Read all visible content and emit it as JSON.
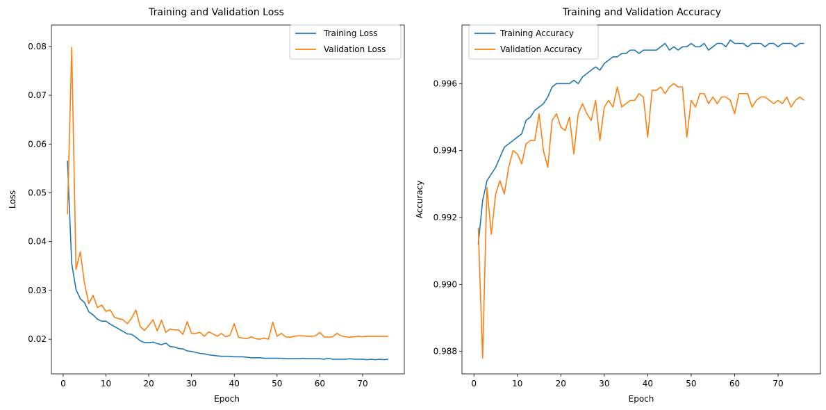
{
  "chart_data": [
    {
      "type": "line",
      "title": "Training and Validation Loss",
      "xlabel": "Epoch",
      "ylabel": "Loss",
      "xlim": [
        -2.75,
        79.75
      ],
      "ylim": [
        0.0129,
        0.0844
      ],
      "xticks": [
        0,
        10,
        20,
        30,
        40,
        50,
        60,
        70
      ],
      "xtick_labels": [
        "0",
        "10",
        "20",
        "30",
        "40",
        "50",
        "60",
        "70"
      ],
      "yticks": [
        0.02,
        0.03,
        0.04,
        0.05,
        0.06,
        0.07,
        0.08
      ],
      "ytick_labels": [
        "0.02",
        "0.03",
        "0.04",
        "0.05",
        "0.06",
        "0.07",
        "0.08"
      ],
      "grid": false,
      "legend_position": "top-right",
      "x": [
        1,
        2,
        3,
        4,
        5,
        6,
        7,
        8,
        9,
        10,
        11,
        12,
        13,
        14,
        15,
        16,
        17,
        18,
        19,
        20,
        21,
        22,
        23,
        24,
        25,
        26,
        27,
        28,
        29,
        30,
        31,
        32,
        33,
        34,
        35,
        36,
        37,
        38,
        39,
        40,
        41,
        42,
        43,
        44,
        45,
        46,
        47,
        48,
        49,
        50,
        51,
        52,
        53,
        54,
        55,
        56,
        57,
        58,
        59,
        60,
        61,
        62,
        63,
        64,
        65,
        66,
        67,
        68,
        69,
        70,
        71,
        72,
        73,
        74,
        75,
        76
      ],
      "series": [
        {
          "name": "Training Loss",
          "color": "#1f77b4",
          "values": [
            0.0566,
            0.0355,
            0.0302,
            0.0283,
            0.0275,
            0.0256,
            0.025,
            0.0241,
            0.0237,
            0.0237,
            0.0231,
            0.0226,
            0.0221,
            0.0216,
            0.0211,
            0.021,
            0.0204,
            0.0197,
            0.0193,
            0.0193,
            0.0194,
            0.0191,
            0.0189,
            0.0192,
            0.0185,
            0.0184,
            0.0181,
            0.018,
            0.0176,
            0.0175,
            0.0173,
            0.0171,
            0.017,
            0.0168,
            0.0167,
            0.0166,
            0.0165,
            0.0165,
            0.0165,
            0.0164,
            0.0164,
            0.0164,
            0.0163,
            0.0162,
            0.0162,
            0.0162,
            0.0161,
            0.0161,
            0.0161,
            0.0161,
            0.0161,
            0.016,
            0.016,
            0.016,
            0.016,
            0.0161,
            0.016,
            0.016,
            0.016,
            0.016,
            0.0159,
            0.0161,
            0.0159,
            0.0159,
            0.0159,
            0.0159,
            0.016,
            0.0159,
            0.0159,
            0.0159,
            0.0158,
            0.0159,
            0.0158,
            0.0159,
            0.0158,
            0.0159
          ]
        },
        {
          "name": "Validation Loss",
          "color": "#ff7f0e",
          "values": [
            0.0456,
            0.0798,
            0.0343,
            0.0379,
            0.0314,
            0.0273,
            0.029,
            0.0265,
            0.027,
            0.0257,
            0.026,
            0.0245,
            0.0242,
            0.024,
            0.0232,
            0.0243,
            0.026,
            0.0226,
            0.0218,
            0.0228,
            0.024,
            0.0217,
            0.0239,
            0.0214,
            0.0221,
            0.0219,
            0.0219,
            0.021,
            0.0236,
            0.0212,
            0.0212,
            0.0214,
            0.0206,
            0.0215,
            0.0211,
            0.0206,
            0.0212,
            0.0205,
            0.0208,
            0.0232,
            0.0204,
            0.0202,
            0.0201,
            0.0205,
            0.0201,
            0.02,
            0.0202,
            0.02,
            0.0235,
            0.0206,
            0.0212,
            0.0205,
            0.0204,
            0.0206,
            0.0207,
            0.0207,
            0.0206,
            0.0206,
            0.0207,
            0.0214,
            0.0205,
            0.0204,
            0.0205,
            0.0212,
            0.0207,
            0.0205,
            0.0204,
            0.0205,
            0.0206,
            0.0205,
            0.0206,
            0.0206,
            0.0206,
            0.0206,
            0.0206,
            0.0206
          ]
        }
      ]
    },
    {
      "type": "line",
      "title": "Training and Validation Accuracy",
      "xlabel": "Epoch",
      "ylabel": "Accuracy",
      "xlim": [
        -2.75,
        79.75
      ],
      "ylim": [
        0.98733,
        0.99775
      ],
      "xticks": [
        0,
        10,
        20,
        30,
        40,
        50,
        60,
        70
      ],
      "xtick_labels": [
        "0",
        "10",
        "20",
        "30",
        "40",
        "50",
        "60",
        "70"
      ],
      "yticks": [
        0.988,
        0.99,
        0.992,
        0.994,
        0.996
      ],
      "ytick_labels": [
        "0.988",
        "0.990",
        "0.992",
        "0.994",
        "0.996"
      ],
      "grid": false,
      "legend_position": "top-left",
      "x": [
        1,
        2,
        3,
        4,
        5,
        6,
        7,
        8,
        9,
        10,
        11,
        12,
        13,
        14,
        15,
        16,
        17,
        18,
        19,
        20,
        21,
        22,
        23,
        24,
        25,
        26,
        27,
        28,
        29,
        30,
        31,
        32,
        33,
        34,
        35,
        36,
        37,
        38,
        39,
        40,
        41,
        42,
        43,
        44,
        45,
        46,
        47,
        48,
        49,
        50,
        51,
        52,
        53,
        54,
        55,
        56,
        57,
        58,
        59,
        60,
        61,
        62,
        63,
        64,
        65,
        66,
        67,
        68,
        69,
        70,
        71,
        72,
        73,
        74,
        75,
        76
      ],
      "series": [
        {
          "name": "Training Accuracy",
          "color": "#1f77b4",
          "values": [
            0.9912,
            0.9925,
            0.9931,
            0.9933,
            0.9935,
            0.9938,
            0.9941,
            0.9942,
            0.9943,
            0.9944,
            0.9945,
            0.9949,
            0.995,
            0.9952,
            0.9953,
            0.9954,
            0.9956,
            0.9959,
            0.996,
            0.996,
            0.996,
            0.996,
            0.9961,
            0.996,
            0.9962,
            0.9963,
            0.9964,
            0.9965,
            0.9964,
            0.9966,
            0.9967,
            0.9968,
            0.9968,
            0.9969,
            0.9969,
            0.997,
            0.997,
            0.9969,
            0.997,
            0.997,
            0.997,
            0.997,
            0.9971,
            0.9972,
            0.997,
            0.9971,
            0.997,
            0.9971,
            0.9971,
            0.9972,
            0.9971,
            0.9971,
            0.9972,
            0.997,
            0.9971,
            0.9972,
            0.9972,
            0.9971,
            0.9973,
            0.9972,
            0.9972,
            0.9972,
            0.9971,
            0.9972,
            0.9972,
            0.9972,
            0.9971,
            0.9972,
            0.9972,
            0.9971,
            0.9972,
            0.9972,
            0.9972,
            0.9971,
            0.9972,
            0.9972
          ]
        },
        {
          "name": "Validation Accuracy",
          "color": "#ff7f0e",
          "values": [
            0.9917,
            0.9878,
            0.9929,
            0.9915,
            0.9927,
            0.9931,
            0.9927,
            0.9935,
            0.994,
            0.9939,
            0.9936,
            0.9942,
            0.9943,
            0.9943,
            0.9951,
            0.994,
            0.9935,
            0.9949,
            0.9951,
            0.9947,
            0.9946,
            0.995,
            0.9939,
            0.9951,
            0.9954,
            0.9951,
            0.9949,
            0.9955,
            0.9943,
            0.9953,
            0.9955,
            0.9953,
            0.9959,
            0.9953,
            0.9954,
            0.9955,
            0.9955,
            0.9957,
            0.9956,
            0.9944,
            0.9958,
            0.9958,
            0.9959,
            0.9957,
            0.9959,
            0.996,
            0.9959,
            0.9959,
            0.9944,
            0.9955,
            0.9953,
            0.9957,
            0.9957,
            0.9954,
            0.9956,
            0.9954,
            0.9956,
            0.9956,
            0.9955,
            0.9951,
            0.9957,
            0.9957,
            0.9957,
            0.9953,
            0.9955,
            0.9956,
            0.9956,
            0.9955,
            0.9954,
            0.9955,
            0.9954,
            0.9956,
            0.9953,
            0.9955,
            0.9956,
            0.9955
          ]
        }
      ]
    }
  ]
}
